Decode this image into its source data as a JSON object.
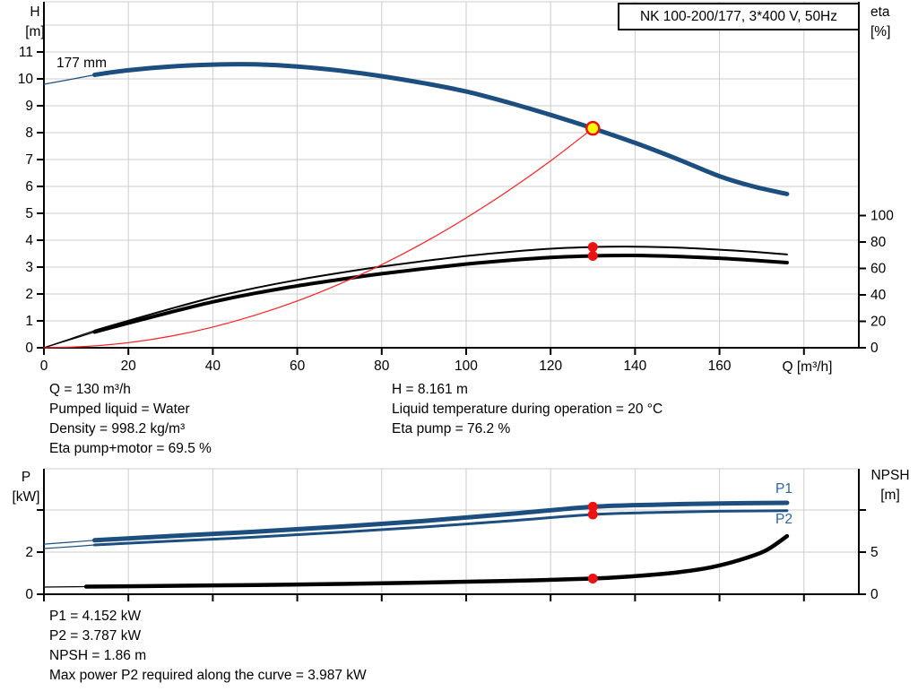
{
  "title_box": "NK 100-200/177, 3*400 V, 50Hz",
  "labels": {
    "h": "H",
    "h_unit": "[m]",
    "eta": "eta",
    "eta_unit": "[%]",
    "q_axis": "Q [m³/h]",
    "p": "P",
    "p_unit": "[kW]",
    "npsh": "NPSH",
    "npsh_unit": "[m]",
    "impeller": "177 mm",
    "p1": "P1",
    "p2": "P2"
  },
  "info_top_left": [
    "Q = 130 m³/h",
    "Pumped liquid = Water",
    "Density = 998.2 kg/m³",
    "Eta pump+motor = 69.5 %"
  ],
  "info_top_right": [
    "H = 8.161 m",
    "Liquid temperature during operation = 20 °C",
    "Eta pump = 76.2 %"
  ],
  "info_bottom": [
    "P1 = 4.152 kW",
    "P2 = 3.787 kW",
    "NPSH = 1.86 m",
    "Max power P2 required along the curve = 3.987 kW"
  ],
  "colors": {
    "curve_blue": "#1c4e80",
    "label_blue": "#2a64a8",
    "marker_red": "#ee1111",
    "system_red": "#ff2020",
    "marker_yellow": "#ffff00",
    "grid": "#cccccc",
    "axis": "#000000"
  },
  "chart_data": [
    {
      "name": "head-efficiency-chart",
      "type": "line",
      "title": "NK 100-200/177, 3*400 V, 50Hz",
      "xlabel": "Q [m³/h]",
      "ylabel_left": "H [m]",
      "ylabel_right": "eta [%]",
      "x_range": [
        0,
        193
      ],
      "x_grid_step": 20,
      "x_grid_max": 180,
      "x_tick_labels": [
        0,
        20,
        40,
        60,
        80,
        100,
        120,
        140,
        160
      ],
      "y_left_range": [
        0,
        12.9
      ],
      "y_left_ticks": [
        0,
        1,
        2,
        3,
        4,
        5,
        6,
        7,
        8,
        9,
        10,
        11
      ],
      "y_left_grid": [
        1,
        2,
        3,
        4,
        5,
        6,
        7,
        8,
        9,
        10,
        11,
        12
      ],
      "y_right_range": [
        0,
        100
      ],
      "y_right_ticks": [
        0,
        20,
        40,
        60,
        80,
        100
      ],
      "series": [
        {
          "name": "pump-curve-177mm",
          "label": "177 mm",
          "axis": "left",
          "color": "#1c4e80",
          "width": 5,
          "lead": [
            [
              0,
              9.8
            ],
            [
              6,
              9.97
            ],
            [
              12,
              10.15
            ]
          ],
          "points": [
            [
              12,
              10.15
            ],
            [
              20,
              10.32
            ],
            [
              30,
              10.46
            ],
            [
              40,
              10.53
            ],
            [
              50,
              10.54
            ],
            [
              60,
              10.46
            ],
            [
              70,
              10.31
            ],
            [
              80,
              10.1
            ],
            [
              90,
              9.84
            ],
            [
              100,
              9.53
            ],
            [
              110,
              9.12
            ],
            [
              120,
              8.66
            ],
            [
              130,
              8.161
            ],
            [
              140,
              7.62
            ],
            [
              150,
              7.02
            ],
            [
              160,
              6.38
            ],
            [
              168,
              6.0
            ],
            [
              176,
              5.72
            ]
          ]
        },
        {
          "name": "eta-pump-curve",
          "axis": "right",
          "color": "#000000",
          "width": 2,
          "lead": [
            [
              0,
              0
            ],
            [
              6,
              6.5
            ],
            [
              12,
              13
            ]
          ],
          "points": [
            [
              12,
              13
            ],
            [
              20,
              20.5
            ],
            [
              30,
              29.5
            ],
            [
              40,
              38
            ],
            [
              50,
              45.2
            ],
            [
              60,
              51.3
            ],
            [
              70,
              56.6
            ],
            [
              80,
              61.4
            ],
            [
              90,
              65.6
            ],
            [
              100,
              69.4
            ],
            [
              110,
              72.5
            ],
            [
              120,
              74.9
            ],
            [
              130,
              76.2
            ],
            [
              140,
              76.5
            ],
            [
              150,
              75.8
            ],
            [
              160,
              74.2
            ],
            [
              168,
              72.6
            ],
            [
              176,
              70.6
            ]
          ]
        },
        {
          "name": "eta-pump-motor-curve",
          "axis": "right",
          "color": "#000000",
          "width": 4,
          "lead": [
            [
              0,
              0
            ],
            [
              6,
              5.9
            ],
            [
              12,
              11.9
            ]
          ],
          "points": [
            [
              12,
              11.9
            ],
            [
              20,
              18.7
            ],
            [
              30,
              26.9
            ],
            [
              40,
              34.7
            ],
            [
              50,
              41.2
            ],
            [
              60,
              46.8
            ],
            [
              70,
              51.6
            ],
            [
              80,
              56.0
            ],
            [
              90,
              59.8
            ],
            [
              100,
              63.3
            ],
            [
              110,
              66.1
            ],
            [
              120,
              68.3
            ],
            [
              130,
              69.5
            ],
            [
              140,
              69.8
            ],
            [
              150,
              69.1
            ],
            [
              160,
              67.7
            ],
            [
              168,
              66.2
            ],
            [
              176,
              64.4
            ]
          ]
        },
        {
          "name": "system-curve",
          "axis": "left",
          "color": "#ff2020",
          "width": 1.2,
          "points": [
            [
              0,
              0
            ],
            [
              10,
              0.05
            ],
            [
              20,
              0.19
            ],
            [
              30,
              0.43
            ],
            [
              40,
              0.77
            ],
            [
              50,
              1.21
            ],
            [
              60,
              1.74
            ],
            [
              70,
              2.37
            ],
            [
              80,
              3.09
            ],
            [
              90,
              3.91
            ],
            [
              100,
              4.83
            ],
            [
              110,
              5.84
            ],
            [
              120,
              6.95
            ],
            [
              130,
              8.161
            ]
          ]
        }
      ],
      "markers": [
        {
          "name": "duty-point",
          "axis": "left",
          "x": 130,
          "y": 8.161,
          "r": 7,
          "fill": "#ffff00",
          "stroke": "#ee1111",
          "stroke_width": 2.5
        },
        {
          "name": "eta-pump-point",
          "axis": "right",
          "x": 130,
          "y": 76.2,
          "r": 5.5,
          "fill": "#ee1111"
        },
        {
          "name": "eta-pump-motor-point",
          "axis": "right",
          "x": 130,
          "y": 69.5,
          "r": 5.5,
          "fill": "#ee1111"
        }
      ]
    },
    {
      "name": "power-npsh-chart",
      "type": "line",
      "title": "",
      "xlabel": "",
      "ylabel_left": "P [kW]",
      "ylabel_right": "NPSH [m]",
      "x_range": [
        0,
        193
      ],
      "x_grid_step": 20,
      "x_grid_max": 180,
      "x_tick_labels": [],
      "y_left_range": [
        0,
        5.95
      ],
      "y_left_ticks": [
        {
          "v": 0,
          "label": "0"
        },
        {
          "v": 2,
          "label": "2"
        },
        {
          "v": 4,
          "label": ""
        }
      ],
      "y_left_grid": [
        2,
        4
      ],
      "y_right_range": [
        0,
        14.9
      ],
      "y_right_ticks": [
        {
          "v": 0,
          "label": "0"
        },
        {
          "v": 5,
          "label": "5"
        },
        {
          "v": 10,
          "label": ""
        }
      ],
      "series": [
        {
          "name": "p1-curve",
          "label": "P1",
          "axis": "left",
          "color": "#1c4e80",
          "width": 5,
          "lead": [
            [
              0,
              2.38
            ],
            [
              6,
              2.47
            ],
            [
              12,
              2.56
            ]
          ],
          "points": [
            [
              12,
              2.56
            ],
            [
              30,
              2.76
            ],
            [
              50,
              2.97
            ],
            [
              70,
              3.21
            ],
            [
              90,
              3.48
            ],
            [
              110,
              3.81
            ],
            [
              130,
              4.152
            ],
            [
              145,
              4.25
            ],
            [
              160,
              4.31
            ],
            [
              176,
              4.34
            ]
          ]
        },
        {
          "name": "p2-curve",
          "label": "P2",
          "axis": "left",
          "color": "#1c4e80",
          "width": 3,
          "lead": [
            [
              0,
              2.17
            ],
            [
              6,
              2.25
            ],
            [
              12,
              2.34
            ]
          ],
          "points": [
            [
              12,
              2.34
            ],
            [
              30,
              2.52
            ],
            [
              50,
              2.71
            ],
            [
              70,
              2.94
            ],
            [
              90,
              3.19
            ],
            [
              110,
              3.48
            ],
            [
              130,
              3.787
            ],
            [
              145,
              3.88
            ],
            [
              160,
              3.94
            ],
            [
              176,
              3.97
            ]
          ]
        },
        {
          "name": "npsh-curve",
          "axis": "right",
          "color": "#000000",
          "width": 4.5,
          "lead": [
            [
              0,
              0.85
            ],
            [
              10,
              0.9
            ]
          ],
          "points": [
            [
              10,
              0.9
            ],
            [
              30,
              1.0
            ],
            [
              50,
              1.1
            ],
            [
              70,
              1.22
            ],
            [
              90,
              1.38
            ],
            [
              110,
              1.58
            ],
            [
              130,
              1.86
            ],
            [
              140,
              2.15
            ],
            [
              150,
              2.6
            ],
            [
              158,
              3.2
            ],
            [
              165,
              4.1
            ],
            [
              171,
              5.2
            ],
            [
              176,
              6.9
            ]
          ]
        }
      ],
      "markers": [
        {
          "name": "p1-point",
          "axis": "left",
          "x": 130,
          "y": 4.152,
          "r": 5.5,
          "fill": "#ee1111"
        },
        {
          "name": "p2-point",
          "axis": "left",
          "x": 130,
          "y": 3.787,
          "r": 5.5,
          "fill": "#ee1111"
        },
        {
          "name": "npsh-point",
          "axis": "right",
          "x": 130,
          "y": 1.86,
          "r": 5.5,
          "fill": "#ee1111"
        }
      ]
    }
  ]
}
